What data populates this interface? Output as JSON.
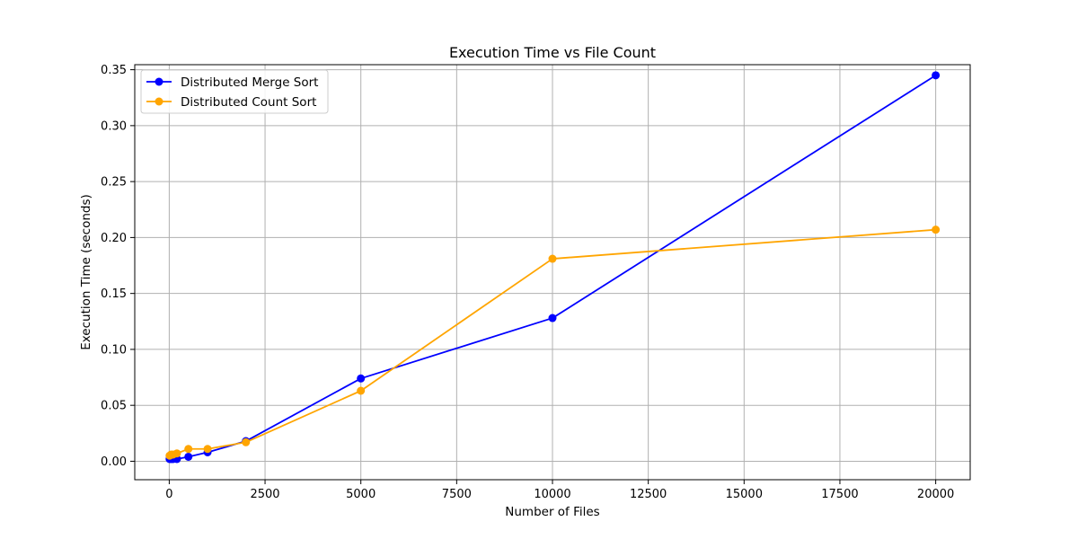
{
  "chart_data": {
    "type": "line",
    "title": "Execution Time vs File Count",
    "xlabel": "Number of Files",
    "ylabel": "Execution Time (seconds)",
    "xlim": [
      -900,
      20900
    ],
    "ylim": [
      -0.0165,
      0.3545
    ],
    "xticks": [
      0,
      2500,
      5000,
      7500,
      10000,
      12500,
      15000,
      17500,
      20000
    ],
    "yticks": [
      0.0,
      0.05,
      0.1,
      0.15,
      0.2,
      0.25,
      0.3,
      0.35
    ],
    "xtick_labels": [
      "0",
      "2500",
      "5000",
      "7500",
      "10000",
      "12500",
      "15000",
      "17500",
      "20000"
    ],
    "ytick_labels": [
      "0.00",
      "0.05",
      "0.10",
      "0.15",
      "0.20",
      "0.25",
      "0.30",
      "0.35"
    ],
    "grid": true,
    "legend_position": "top-left",
    "x": [
      10,
      50,
      100,
      200,
      500,
      1000,
      2000,
      5000,
      10000,
      20000
    ],
    "series": [
      {
        "name": "Distributed Merge Sort",
        "color": "#0000ff",
        "values": [
          0.002,
          0.002,
          0.002,
          0.002,
          0.004,
          0.008,
          0.018,
          0.074,
          0.128,
          0.345
        ]
      },
      {
        "name": "Distributed Count Sort",
        "color": "#ffa500",
        "values": [
          0.005,
          0.006,
          0.006,
          0.007,
          0.011,
          0.011,
          0.017,
          0.063,
          0.181,
          0.207
        ]
      }
    ]
  }
}
